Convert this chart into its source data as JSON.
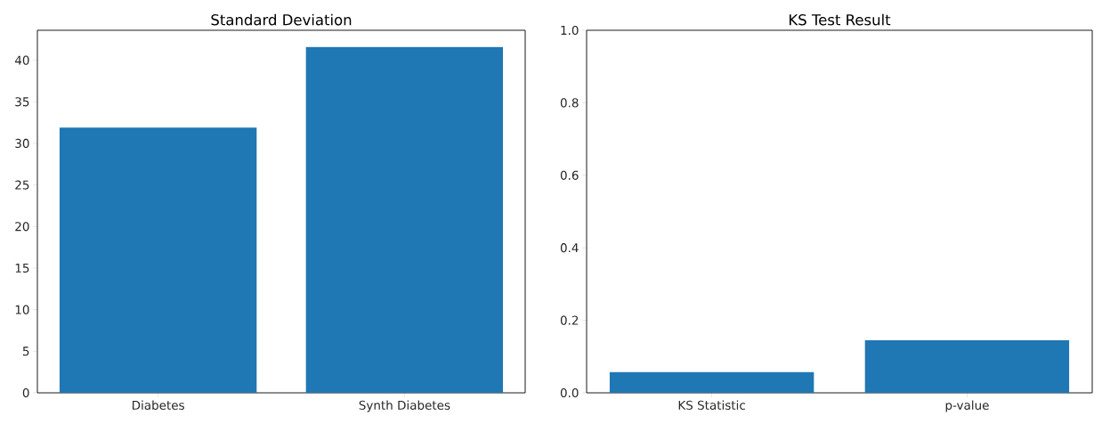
{
  "chart_data": [
    {
      "type": "bar",
      "title": "Standard Deviation",
      "categories": [
        "Diabetes",
        "Synth Diabetes"
      ],
      "values": [
        31.9,
        41.6
      ],
      "color": "#1f77b4",
      "ylim": [
        0,
        43.6
      ],
      "yticks": [
        0,
        5,
        10,
        15,
        20,
        25,
        30,
        35,
        40
      ]
    },
    {
      "type": "bar",
      "title": "KS Test Result",
      "categories": [
        "KS Statistic",
        "p-value"
      ],
      "values": [
        0.057,
        0.145
      ],
      "color": "#1f77b4",
      "ylim": [
        0,
        1.0
      ],
      "yticks": [
        {
          "value": 0,
          "label": "0.0"
        },
        {
          "value": 0.2,
          "label": "0.2"
        },
        {
          "value": 0.4,
          "label": "0.4"
        },
        {
          "value": 0.6,
          "label": "0.6"
        },
        {
          "value": 0.8,
          "label": "0.8"
        },
        {
          "value": 1.0,
          "label": "1.0"
        }
      ]
    }
  ]
}
